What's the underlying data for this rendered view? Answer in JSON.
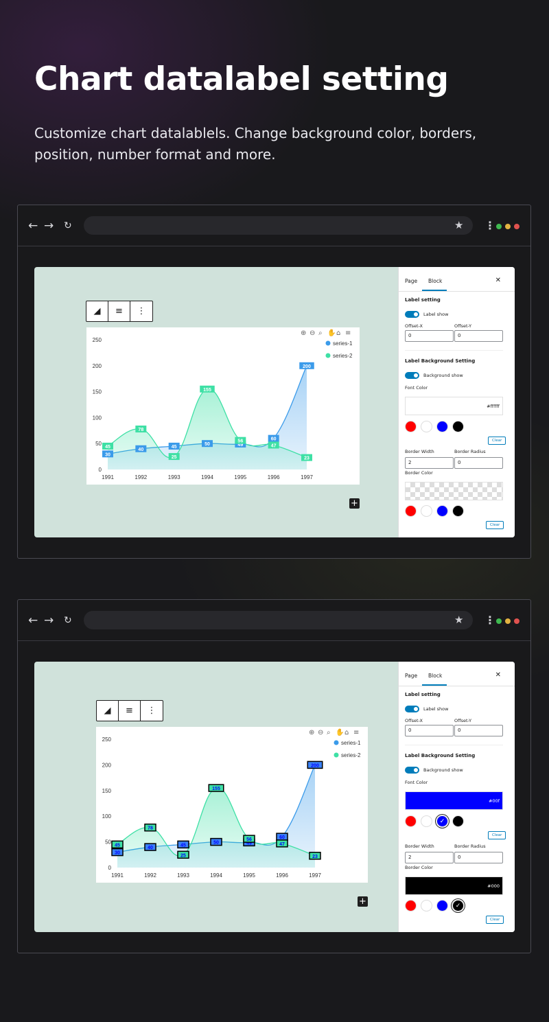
{
  "hero": {
    "title": "Chart datalabel setting",
    "subtitle": "Customize chart datalablels. Change background color, borders, position, number format and more."
  },
  "browser": {
    "back_icon": "arrow-left-icon",
    "forward_icon": "arrow-right-icon",
    "reload_icon": "reload-icon",
    "bookmark_icon": "star-icon",
    "menu_icon": "kebab-icon",
    "window_dots": [
      "#3fb950",
      "#e3b341",
      "#e0524f"
    ]
  },
  "chart_data": [
    {
      "type": "area",
      "categories": [
        "1991",
        "1992",
        "1993",
        "1994",
        "1995",
        "1996",
        "1997"
      ],
      "series": [
        {
          "name": "series-1",
          "values": [
            30,
            40,
            45,
            50,
            49,
            60,
            200
          ],
          "color": "#3b9bea"
        },
        {
          "name": "series-2",
          "values": [
            45,
            78,
            25,
            155,
            56,
            47,
            23
          ],
          "color": "#3ee0a5"
        }
      ],
      "y_ticks": [
        "0",
        "50",
        "100",
        "150",
        "200",
        "250"
      ],
      "ylim": [
        0,
        250
      ],
      "legend_position": "top-right",
      "data_labels": {
        "style": "filled",
        "border": false
      }
    },
    {
      "type": "area",
      "categories": [
        "1991",
        "1992",
        "1993",
        "1994",
        "1995",
        "1996",
        "1997"
      ],
      "series": [
        {
          "name": "series-1",
          "values": [
            30,
            40,
            45,
            50,
            49,
            60,
            200
          ],
          "color": "#3b9bea"
        },
        {
          "name": "series-2",
          "values": [
            45,
            78,
            25,
            155,
            56,
            47,
            23
          ],
          "color": "#3ee0a5"
        }
      ],
      "y_ticks": [
        "0",
        "50",
        "100",
        "150",
        "200",
        "250"
      ],
      "ylim": [
        0,
        250
      ],
      "legend_position": "top-right",
      "data_labels": {
        "style": "bordered",
        "border": true,
        "border_color": "#000000"
      }
    }
  ],
  "panels": [
    {
      "tabs": [
        "Page",
        "Block"
      ],
      "active_tab": "Block",
      "label_setting": "Label setting",
      "label_show": "Label show",
      "offset_x_label": "Offset-X",
      "offset_y_label": "Offset-Y",
      "offset_x": "0",
      "offset_y": "0",
      "bg_setting": "Label Background Setting",
      "bg_show": "Background show",
      "font_color_label": "Font Color",
      "font_color_value": "#ffffff",
      "font_color_swatch": "#ffffff",
      "palette": [
        "#ff0000",
        "#ffffff",
        "#0000ff",
        "#000000"
      ],
      "clear": "Clear",
      "border_width_label": "Border Width",
      "border_radius_label": "Border Radius",
      "border_width": "2",
      "border_radius": "0",
      "border_color_label": "Border Color",
      "border_color_value": "",
      "selected_font_swatch": -1,
      "selected_border_swatch": -1
    },
    {
      "tabs": [
        "Page",
        "Block"
      ],
      "active_tab": "Block",
      "label_setting": "Label setting",
      "label_show": "Label show",
      "offset_x_label": "Offset-X",
      "offset_y_label": "Offset-Y",
      "offset_x": "0",
      "offset_y": "0",
      "bg_setting": "Label Background Setting",
      "bg_show": "Background show",
      "font_color_label": "Font Color",
      "font_color_value": "#00f",
      "font_color_swatch": "#0000ff",
      "palette": [
        "#ff0000",
        "#ffffff",
        "#0000ff",
        "#000000"
      ],
      "clear": "Clear",
      "border_width_label": "Border Width",
      "border_radius_label": "Border Radius",
      "border_width": "2",
      "border_radius": "0",
      "border_color_label": "Border Color",
      "border_color_value": "#000",
      "border_color_swatch": "#000000",
      "selected_font_swatch": 2,
      "selected_border_swatch": 3
    }
  ]
}
